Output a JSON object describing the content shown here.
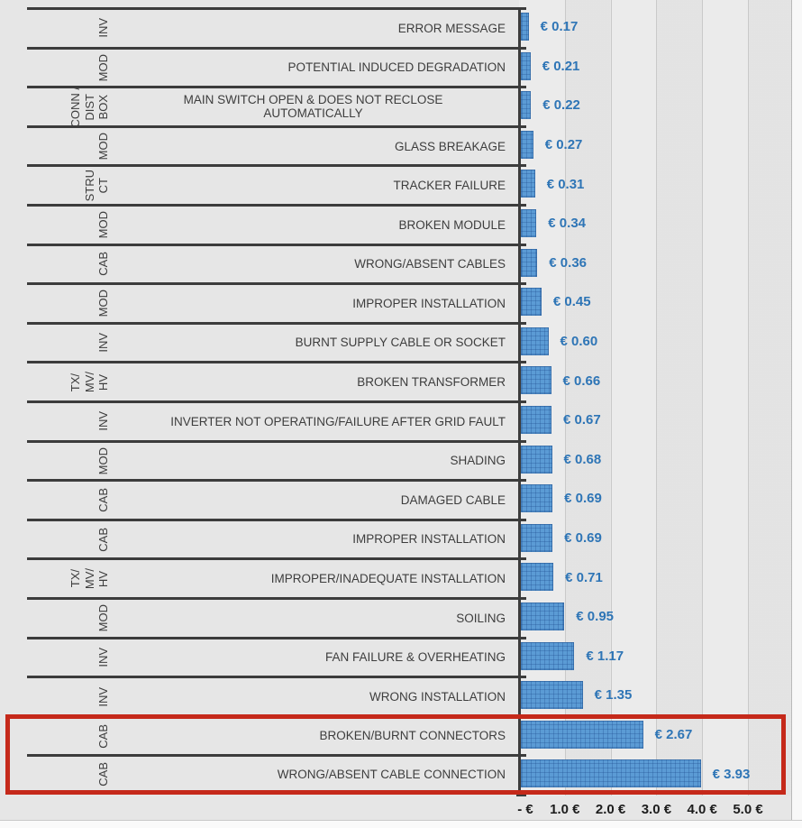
{
  "chart_data": {
    "type": "bar",
    "orientation": "horizontal",
    "title": "",
    "xlabel": "",
    "ylabel": "",
    "unit": "EUR",
    "xlim": [
      0,
      5.0
    ],
    "grid": true,
    "x_axis": {
      "tick_values": [
        0,
        1,
        2,
        3,
        4,
        5
      ],
      "tick_labels": [
        "- €",
        "1.0 €",
        "2.0 €",
        "3.0 €",
        "4.0 €",
        "5.0 €"
      ]
    },
    "bar_color": "#5b9bd5",
    "value_label_color": "#2e75b6",
    "highlight_box_color": "#c5291a",
    "rows": [
      {
        "component": [
          "INV"
        ],
        "failure": "ERROR MESSAGE",
        "value": 0.17,
        "value_label": "€ 0.17",
        "highlighted": false
      },
      {
        "component": [
          "MOD"
        ],
        "failure": "POTENTIAL INDUCED DEGRADATION",
        "value": 0.21,
        "value_label": "€ 0.21",
        "highlighted": false
      },
      {
        "component": [
          "CONN /",
          "DIST",
          "BOX"
        ],
        "failure": "MAIN SWITCH OPEN & DOES NOT RECLOSE AUTOMATICALLY",
        "value": 0.22,
        "value_label": "€ 0.22",
        "highlighted": false,
        "wrap": true
      },
      {
        "component": [
          "MOD"
        ],
        "failure": "GLASS BREAKAGE",
        "value": 0.27,
        "value_label": "€ 0.27",
        "highlighted": false
      },
      {
        "component": [
          "STRU",
          "CT"
        ],
        "failure": "TRACKER FAILURE",
        "value": 0.31,
        "value_label": "€ 0.31",
        "highlighted": false
      },
      {
        "component": [
          "MOD"
        ],
        "failure": "BROKEN MODULE",
        "value": 0.34,
        "value_label": "€ 0.34",
        "highlighted": false
      },
      {
        "component": [
          "CAB"
        ],
        "failure": "WRONG/ABSENT CABLES",
        "value": 0.36,
        "value_label": "€ 0.36",
        "highlighted": false
      },
      {
        "component": [
          "MOD"
        ],
        "failure": "IMPROPER INSTALLATION",
        "value": 0.45,
        "value_label": "€ 0.45",
        "highlighted": false
      },
      {
        "component": [
          "INV"
        ],
        "failure": "BURNT SUPPLY CABLE OR SOCKET",
        "value": 0.6,
        "value_label": "€ 0.60",
        "highlighted": false
      },
      {
        "component": [
          "TX/",
          "MV/",
          "HV"
        ],
        "failure": "BROKEN TRANSFORMER",
        "value": 0.66,
        "value_label": "€ 0.66",
        "highlighted": false
      },
      {
        "component": [
          "INV"
        ],
        "failure": "INVERTER NOT OPERATING/FAILURE AFTER GRID FAULT",
        "value": 0.67,
        "value_label": "€ 0.67",
        "highlighted": false
      },
      {
        "component": [
          "MOD"
        ],
        "failure": "SHADING",
        "value": 0.68,
        "value_label": "€ 0.68",
        "highlighted": false
      },
      {
        "component": [
          "CAB"
        ],
        "failure": "DAMAGED CABLE",
        "value": 0.69,
        "value_label": "€ 0.69",
        "highlighted": false
      },
      {
        "component": [
          "CAB"
        ],
        "failure": "IMPROPER INSTALLATION",
        "value": 0.69,
        "value_label": "€ 0.69",
        "highlighted": false
      },
      {
        "component": [
          "TX/",
          "MV/",
          "HV"
        ],
        "failure": "IMPROPER/INADEQUATE INSTALLATION",
        "value": 0.71,
        "value_label": "€ 0.71",
        "highlighted": false
      },
      {
        "component": [
          "MOD"
        ],
        "failure": "SOILING",
        "value": 0.95,
        "value_label": "€ 0.95",
        "highlighted": false
      },
      {
        "component": [
          "INV"
        ],
        "failure": "FAN FAILURE & OVERHEATING",
        "value": 1.17,
        "value_label": "€ 1.17",
        "highlighted": false
      },
      {
        "component": [
          "INV"
        ],
        "failure": "WRONG INSTALLATION",
        "value": 1.35,
        "value_label": "€ 1.35",
        "highlighted": false
      },
      {
        "component": [
          "CAB"
        ],
        "failure": "BROKEN/BURNT CONNECTORS",
        "value": 2.67,
        "value_label": "€ 2.67",
        "highlighted": true
      },
      {
        "component": [
          "CAB"
        ],
        "failure": "WRONG/ABSENT CABLE CONNECTION",
        "value": 3.93,
        "value_label": "€ 3.93",
        "highlighted": true
      }
    ]
  }
}
